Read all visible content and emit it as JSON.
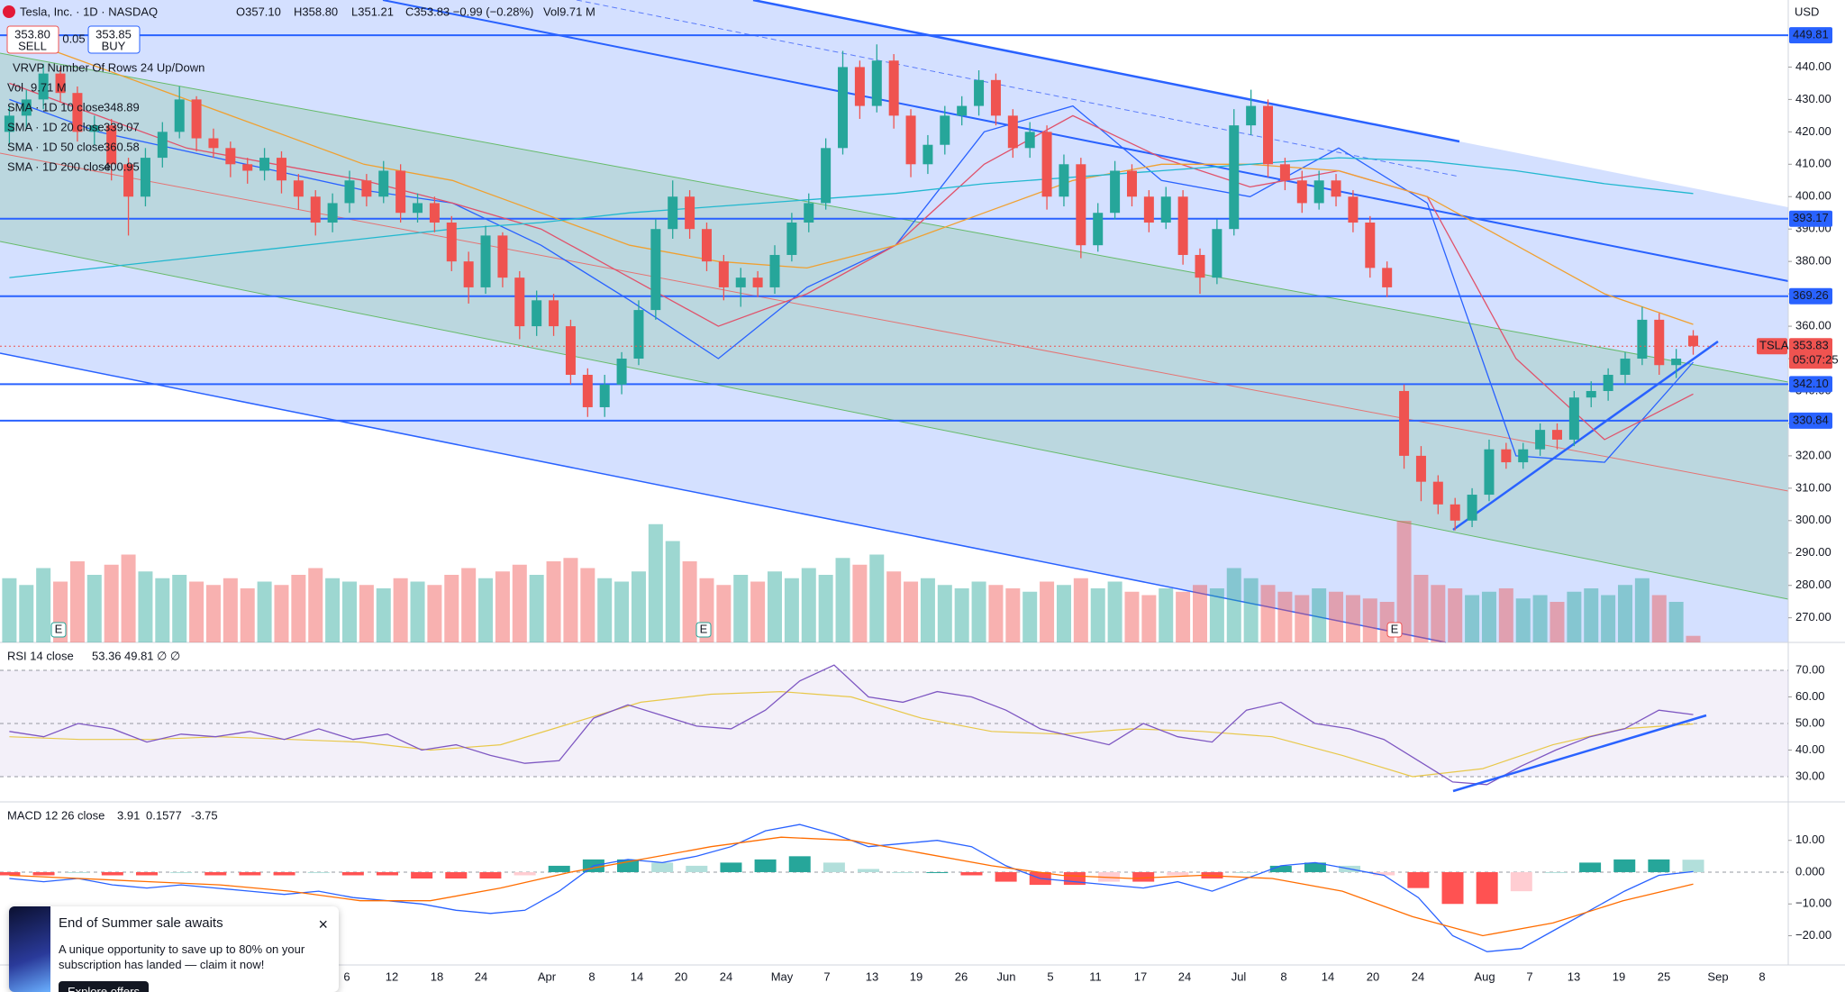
{
  "header": {
    "symbol": "Tesla, Inc. · 1D · NASDAQ",
    "ohlc": [
      "O357.10",
      "H358.80",
      "L351.21",
      "C353.83 −0.99 (−0.28%)"
    ],
    "volume": "Vol9.71 M",
    "currency": "USD"
  },
  "trade": {
    "sell_price": "353.80",
    "sell": "SELL",
    "spread": "0.05",
    "buy_price": "353.85",
    "buy": "BUY"
  },
  "legend": {
    "vol_label": "Vol",
    "vol_value": "9.71 M",
    "vrvp": "VRVP Number Of Rows 24 Up/Down"
  },
  "chart_data": {
    "type": "candlestick",
    "ylim": [
      262.4,
      460.7
    ],
    "yticks": [
      {
        "value": 270,
        "label": "270.00"
      },
      {
        "value": 280,
        "label": "280.00"
      },
      {
        "value": 290,
        "label": "290.00"
      },
      {
        "value": 300,
        "label": "300.00"
      },
      {
        "value": 310,
        "label": "310.00"
      },
      {
        "value": 320,
        "label": "320.00"
      },
      {
        "value": 330,
        "label": "330.00"
      },
      {
        "value": 340,
        "label": "340.00"
      },
      {
        "value": 350,
        "label": "350.00"
      },
      {
        "value": 360,
        "label": "360.00"
      },
      {
        "value": 370,
        "label": "370.00"
      },
      {
        "value": 380,
        "label": "380.00"
      },
      {
        "value": 390,
        "label": "390.00"
      },
      {
        "value": 400,
        "label": "400.00"
      },
      {
        "value": 410,
        "label": "410.00"
      },
      {
        "value": 420,
        "label": "420.00"
      },
      {
        "value": 430,
        "label": "430.00"
      },
      {
        "value": 440,
        "label": "440.00"
      }
    ],
    "up_color": "#26a69a",
    "down_color": "#ef5350",
    "candles": [
      [
        420,
        428,
        416,
        425
      ],
      [
        425,
        433,
        421,
        430
      ],
      [
        430,
        441,
        427,
        438
      ],
      [
        438,
        440,
        429,
        432
      ],
      [
        432,
        434,
        417,
        420
      ],
      [
        420,
        425,
        416,
        422
      ],
      [
        422,
        424,
        405,
        410
      ],
      [
        410,
        412,
        388,
        400
      ],
      [
        400,
        415,
        397,
        412
      ],
      [
        412,
        423,
        409,
        420
      ],
      [
        420,
        434,
        418,
        430
      ],
      [
        430,
        431,
        414,
        418
      ],
      [
        418,
        421,
        412,
        415
      ],
      [
        415,
        417,
        406,
        410
      ],
      [
        410,
        412,
        404,
        408
      ],
      [
        408,
        415,
        405,
        412
      ],
      [
        412,
        414,
        401,
        405
      ],
      [
        405,
        407,
        396,
        400
      ],
      [
        400,
        402,
        388,
        392
      ],
      [
        392,
        401,
        389,
        398
      ],
      [
        398,
        408,
        395,
        405
      ],
      [
        405,
        407,
        397,
        400
      ],
      [
        400,
        411,
        398,
        408
      ],
      [
        408,
        410,
        392,
        395
      ],
      [
        395,
        401,
        392,
        398
      ],
      [
        398,
        400,
        389,
        392
      ],
      [
        392,
        394,
        377,
        380
      ],
      [
        380,
        383,
        367,
        372
      ],
      [
        372,
        391,
        370,
        388
      ],
      [
        388,
        389,
        372,
        375
      ],
      [
        375,
        377,
        356,
        360
      ],
      [
        360,
        371,
        357,
        368
      ],
      [
        368,
        370,
        357,
        360
      ],
      [
        360,
        362,
        342,
        345
      ],
      [
        345,
        347,
        332,
        335
      ],
      [
        335,
        345,
        332,
        342
      ],
      [
        342,
        352,
        339,
        350
      ],
      [
        350,
        368,
        348,
        365
      ],
      [
        365,
        393,
        362,
        390
      ],
      [
        390,
        405,
        387,
        400
      ],
      [
        400,
        402,
        387,
        390
      ],
      [
        390,
        392,
        377,
        380
      ],
      [
        380,
        382,
        368,
        372
      ],
      [
        372,
        378,
        366,
        375
      ],
      [
        375,
        377,
        369,
        372
      ],
      [
        372,
        385,
        370,
        382
      ],
      [
        382,
        395,
        380,
        392
      ],
      [
        392,
        401,
        389,
        398
      ],
      [
        398,
        418,
        396,
        415
      ],
      [
        415,
        445,
        413,
        440
      ],
      [
        440,
        442,
        424,
        428
      ],
      [
        428,
        447,
        426,
        442
      ],
      [
        442,
        444,
        421,
        425
      ],
      [
        425,
        427,
        406,
        410
      ],
      [
        410,
        419,
        407,
        416
      ],
      [
        416,
        428,
        413,
        425
      ],
      [
        425,
        431,
        422,
        428
      ],
      [
        428,
        439,
        425,
        436
      ],
      [
        436,
        438,
        422,
        425
      ],
      [
        425,
        427,
        412,
        415
      ],
      [
        415,
        423,
        412,
        420
      ],
      [
        420,
        422,
        396,
        400
      ],
      [
        400,
        413,
        397,
        410
      ],
      [
        410,
        412,
        381,
        385
      ],
      [
        385,
        398,
        383,
        395
      ],
      [
        395,
        411,
        393,
        408
      ],
      [
        408,
        410,
        397,
        400
      ],
      [
        400,
        402,
        389,
        392
      ],
      [
        392,
        403,
        390,
        400
      ],
      [
        400,
        402,
        379,
        382
      ],
      [
        382,
        384,
        370,
        375
      ],
      [
        375,
        393,
        373,
        390
      ],
      [
        390,
        427,
        388,
        422
      ],
      [
        422,
        433,
        419,
        428
      ],
      [
        428,
        430,
        406,
        410
      ],
      [
        410,
        412,
        402,
        405
      ],
      [
        405,
        408,
        395,
        398
      ],
      [
        398,
        408,
        396,
        405
      ],
      [
        405,
        407,
        397,
        400
      ],
      [
        400,
        402,
        389,
        392
      ],
      [
        392,
        394,
        375,
        378
      ],
      [
        378,
        380,
        369,
        372
      ],
      [
        340,
        342,
        316,
        320
      ],
      [
        320,
        323,
        306,
        312
      ],
      [
        312,
        314,
        302,
        305
      ],
      [
        305,
        307,
        297,
        300
      ],
      [
        300,
        310,
        298,
        308
      ],
      [
        308,
        325,
        306,
        322
      ],
      [
        322,
        324,
        316,
        318
      ],
      [
        318,
        324,
        316,
        322
      ],
      [
        322,
        330,
        320,
        328
      ],
      [
        328,
        330,
        322,
        325
      ],
      [
        325,
        340,
        323,
        338
      ],
      [
        338,
        343,
        335,
        340
      ],
      [
        340,
        347,
        337,
        345
      ],
      [
        345,
        352,
        342,
        350
      ],
      [
        350,
        366,
        348,
        362
      ],
      [
        362,
        364,
        345,
        348
      ],
      [
        348,
        353,
        344,
        350
      ],
      [
        357.1,
        358.8,
        351.21,
        353.83
      ]
    ],
    "volume": [
      95,
      85,
      110,
      90,
      120,
      100,
      115,
      130,
      105,
      95,
      100,
      90,
      85,
      95,
      80,
      90,
      85,
      100,
      110,
      95,
      90,
      85,
      80,
      95,
      90,
      85,
      100,
      110,
      95,
      105,
      115,
      100,
      120,
      125,
      110,
      95,
      90,
      105,
      175,
      150,
      120,
      95,
      85,
      100,
      90,
      105,
      95,
      110,
      100,
      125,
      115,
      130,
      105,
      90,
      95,
      85,
      80,
      90,
      85,
      80,
      75,
      90,
      85,
      95,
      80,
      90,
      75,
      70,
      80,
      75,
      85,
      80,
      110,
      95,
      85,
      75,
      70,
      80,
      75,
      70,
      65,
      60,
      180,
      100,
      85,
      80,
      70,
      75,
      80,
      65,
      70,
      60,
      75,
      80,
      70,
      85,
      95,
      70,
      60,
      9.71
    ],
    "sma_series": [
      {
        "name": "SMA · 1D 10 close",
        "color": "#2962ff",
        "values": [
          430,
          420,
          414,
          408,
          402,
          398,
          385,
          368,
          350,
          372,
          385,
          420,
          428,
          405,
          400,
          415,
          398,
          320,
          318,
          348.89
        ]
      },
      {
        "name": "SMA · 1D 20 close",
        "color": "#e0526b",
        "values": [
          435,
          425,
          415,
          410,
          405,
          398,
          390,
          375,
          360,
          370,
          385,
          410,
          425,
          412,
          403,
          408,
          400,
          350,
          325,
          339.07
        ]
      },
      {
        "name": "SMA · 1D 50 close",
        "color": "#f0a030",
        "values": [
          450,
          440,
          430,
          420,
          410,
          405,
          395,
          385,
          380,
          378,
          385,
          395,
          405,
          410,
          410,
          408,
          400,
          385,
          370,
          360.58
        ]
      },
      {
        "name": "SMA · 1D 200 close",
        "color": "#22b8cf",
        "values": [
          375,
          378,
          381,
          384,
          387,
          390,
          392,
          395,
          397,
          399,
          401,
          404,
          406,
          408,
          410,
          412,
          411,
          408,
          404,
          400.95
        ]
      }
    ],
    "levels": [
      {
        "value": 449.81,
        "label": "449.81"
      },
      {
        "value": 393.17,
        "label": "393.17"
      },
      {
        "value": 369.26,
        "label": "369.26"
      },
      {
        "value": 342.1,
        "label": "342.10"
      },
      {
        "value": 330.84,
        "label": "330.84"
      }
    ],
    "level_color": "#2962ff",
    "current": {
      "symbol": "TSLA",
      "countdown": "05:07:25"
    },
    "earnings_markers": [
      "E",
      "E",
      "E"
    ],
    "x_labels": [
      "6",
      "12",
      "18",
      "24",
      "Apr",
      "8",
      "14",
      "20",
      "24",
      "May",
      "7",
      "13",
      "19",
      "26",
      "Jun",
      "5",
      "11",
      "17",
      "24",
      "Jul",
      "8",
      "14",
      "20",
      "24",
      "Aug",
      "7",
      "13",
      "19",
      "25",
      "Sep",
      "8"
    ],
    "rsi": {
      "label": "RSI 14 close",
      "color": "#7e57c2",
      "ma_color": "#e8c84a",
      "extra": "∅ ∅",
      "ylim": [
        20.5,
        80.5
      ],
      "yticks": [
        {
          "value": 30,
          "label": "30.00"
        },
        {
          "value": 40,
          "label": "40.00"
        },
        {
          "value": 50,
          "label": "50.00"
        },
        {
          "value": 60,
          "label": "60.00"
        },
        {
          "value": 70,
          "label": "70.00"
        }
      ],
      "values": [
        47,
        45,
        50,
        48,
        43,
        46,
        45,
        47,
        44,
        48,
        44,
        46,
        40,
        42,
        38,
        35,
        36,
        52,
        57,
        53,
        49,
        48,
        55,
        66,
        72,
        60,
        58,
        62,
        60,
        55,
        48,
        45,
        42,
        50,
        45,
        43,
        55,
        58,
        50,
        48,
        44,
        36,
        28,
        27,
        34,
        40,
        45,
        48,
        55,
        53.36
      ],
      "ma_values": [
        45,
        44,
        44,
        45,
        44,
        43,
        40,
        42,
        50,
        58,
        61,
        62,
        60,
        52,
        47,
        46,
        48,
        47,
        45,
        38,
        30,
        33,
        42,
        48,
        49.81
      ]
    },
    "macd": {
      "label": "MACD 12 26 close",
      "macd_color": "#2962ff",
      "signal_color": "#ff6d00",
      "ylim": [
        -29.2,
        22.1
      ],
      "yticks": [
        {
          "value": -20,
          "label": "−20.00"
        },
        {
          "value": -10,
          "label": "−10.00"
        },
        {
          "value": 0,
          "label": "0.000"
        },
        {
          "value": 10,
          "label": "10.00"
        }
      ],
      "histogram": [
        -1,
        -1,
        0,
        -1,
        -1,
        0,
        -1,
        -1,
        -1,
        0,
        -1,
        -1,
        -2,
        -2,
        -2,
        -1,
        2,
        4,
        4,
        3,
        2,
        3,
        4,
        5,
        3,
        1,
        0,
        0,
        -1,
        -3,
        -4,
        -4,
        -3,
        -3,
        -1,
        -2,
        0,
        2,
        3,
        2,
        -1,
        -5,
        -10,
        -10,
        -6,
        0,
        3,
        4,
        4,
        3.91
      ],
      "macd_values": [
        -2,
        -3,
        -2,
        -4,
        -5,
        -4,
        -5,
        -6,
        -7,
        -6,
        -8,
        -9,
        -10,
        -12,
        -13,
        -12,
        -6,
        2,
        4,
        3,
        5,
        8,
        13,
        15,
        12,
        8,
        9,
        10,
        8,
        2,
        -2,
        -3,
        -4,
        -5,
        -3,
        -6,
        -2,
        2,
        3,
        1,
        -1,
        -8,
        -20,
        -25,
        -24,
        -18,
        -12,
        -6,
        -1,
        0.1577
      ],
      "signal_values": [
        -1,
        -2,
        -3,
        -4,
        -6,
        -9,
        -9,
        -5,
        0,
        4,
        8,
        11,
        10,
        6,
        2,
        -1,
        -2,
        -1,
        -2,
        -6,
        -14,
        -20,
        -16,
        -9,
        -3.75
      ]
    }
  },
  "promo": {
    "title": "End of Summer sale awaits",
    "body": "A unique opportunity to save up to 80% on your subscription has landed — claim it now!",
    "button": "Explore offers",
    "close": "×"
  }
}
